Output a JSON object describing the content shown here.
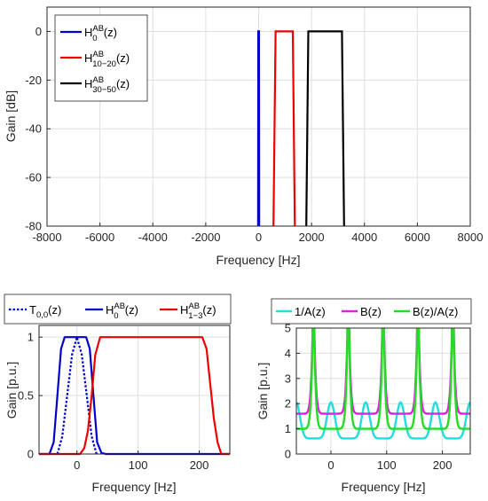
{
  "chart_data": [
    {
      "type": "line",
      "xlabel": "Frequency [Hz]",
      "ylabel": "Gain [dB]",
      "xlim": [
        -8000,
        8000
      ],
      "ylim": [
        -80,
        10
      ],
      "xticks": [
        "-8000",
        "-6000",
        "-4000",
        "-2000",
        "0",
        "2000",
        "4000",
        "6000",
        "8000"
      ],
      "yticks": [
        "0",
        "-20",
        "-40",
        "-60",
        "-80"
      ],
      "grid": true,
      "legend_position": "top-left",
      "colors": [
        "#0000cc",
        "#ee0000",
        "#000000"
      ],
      "series": [
        {
          "name_main": "H",
          "name_sup": "AB",
          "name_sub": "0",
          "name_tail": "(z)",
          "color": "#0000cc",
          "x": [
            -20,
            -15,
            -5,
            5,
            15,
            20
          ],
          "y": [
            -80,
            0,
            0,
            0,
            0,
            -80
          ]
        },
        {
          "name_main": "H",
          "name_sup": "AB",
          "name_sub": "10−20",
          "name_tail": "(z)",
          "color": "#ee0000",
          "x": [
            560,
            640,
            1290,
            1370
          ],
          "y": [
            -80,
            0,
            0,
            -80
          ]
        },
        {
          "name_main": "H",
          "name_sup": "AB",
          "name_sub": "30−50",
          "name_tail": "(z)",
          "color": "#000000",
          "x": [
            1800,
            1880,
            3150,
            3230
          ],
          "y": [
            -80,
            0,
            0,
            -80
          ]
        }
      ]
    },
    {
      "type": "line",
      "xlabel": "Frequency [Hz]",
      "ylabel": "Gain [p.u.]",
      "xlim": [
        -62,
        250
      ],
      "ylim": [
        0,
        1.1
      ],
      "xticks": [
        "0",
        "100",
        "200"
      ],
      "yticks": [
        "0",
        "0.5",
        "1"
      ],
      "grid": true,
      "legend_position": "top-outside",
      "series": [
        {
          "name_main": "T",
          "name_sup": "",
          "name_sub": "0,0",
          "name_tail": "(z)",
          "color": "#0000cc",
          "style": "dotted",
          "x": [
            -32,
            -24,
            -16,
            -8,
            0,
            8,
            16,
            24,
            32
          ],
          "y": [
            0,
            0.15,
            0.5,
            0.85,
            1.0,
            0.85,
            0.5,
            0.15,
            0
          ]
        },
        {
          "name_main": "H",
          "name_sup": "AB",
          "name_sub": "0",
          "name_tail": "(z)",
          "color": "#0000cc",
          "style": "solid",
          "x": [
            -62,
            -45,
            -38,
            -32,
            -26,
            -20,
            15,
            21,
            27,
            33,
            40,
            47,
            250
          ],
          "y": [
            0,
            0,
            0.1,
            0.5,
            0.9,
            1.0,
            1.0,
            0.9,
            0.5,
            0.1,
            0.01,
            0,
            0
          ]
        },
        {
          "name_main": "H",
          "name_sup": "AB",
          "name_sub": "1−3",
          "name_tail": "(z)",
          "color": "#ee0000",
          "style": "solid",
          "x": [
            -62,
            5,
            12,
            18,
            24,
            30,
            38,
            205,
            212,
            218,
            224,
            230,
            236,
            250
          ],
          "y": [
            0,
            0,
            0.05,
            0.2,
            0.5,
            0.85,
            1.0,
            1.0,
            0.9,
            0.6,
            0.3,
            0.1,
            0,
            0
          ]
        }
      ]
    },
    {
      "type": "line",
      "xlabel": "Frequency [Hz]",
      "ylabel": "Gain [p.u.]",
      "xlim": [
        -62,
        250
      ],
      "ylim": [
        0,
        5
      ],
      "xticks": [
        "0",
        "100",
        "200"
      ],
      "yticks": [
        "0",
        "1",
        "2",
        "3",
        "4",
        "5"
      ],
      "grid": true,
      "legend_position": "top-outside",
      "period_hz": 62.5,
      "series": [
        {
          "name": "1/A(z)",
          "color": "#22dddd",
          "peak_offset": 0,
          "peak": 2.05,
          "floor": 0.62
        },
        {
          "name": "B(z)",
          "color": "#dd22dd",
          "peak_offset": 31.25,
          "peak": 5,
          "floor": 1.6
        },
        {
          "name": "B(z)/A(z)",
          "color": "#22dd22",
          "peak_offset": 31.25,
          "peak": 5,
          "floor": 1.0
        }
      ]
    }
  ]
}
